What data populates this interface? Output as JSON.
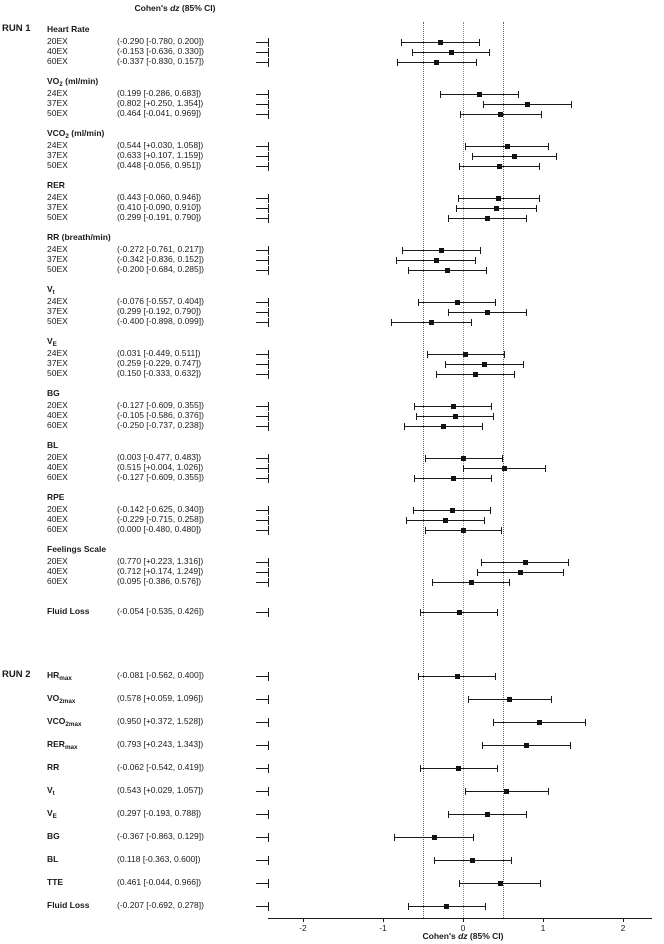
{
  "figure": {
    "title_parts": [
      {
        "t": "Cohen's "
      },
      {
        "t": "dz",
        "i": true
      },
      {
        "t": " (85% CI)"
      }
    ]
  },
  "chart_data": {
    "type": "forest",
    "effect_measure": "Cohen's dz",
    "ci_level": "85%",
    "title": "Cohen's dz (85% CI)",
    "marker_color": "#111111",
    "x_axis": {
      "label_parts": [
        {
          "t": "Cohen's "
        },
        {
          "t": "dz",
          "i": true
        },
        {
          "t": " (85% CI)"
        }
      ],
      "xlim": [
        -2.44,
        2.36
      ],
      "ticks": [
        {
          "value": -2,
          "label": "-2"
        },
        {
          "value": -1,
          "label": "-1"
        },
        {
          "value": 0,
          "label": "0"
        },
        {
          "value": 1,
          "label": "1"
        },
        {
          "value": 2,
          "label": "2"
        }
      ]
    },
    "ref_lines": [
      {
        "value": -0.5,
        "color": "#d93025",
        "style": "dotted"
      },
      {
        "value": 0,
        "color": "#8a8a8a",
        "style": "dotted"
      },
      {
        "value": 0.5,
        "color": "#d93025",
        "style": "dotted"
      }
    ],
    "sections": [
      {
        "run": "RUN 1",
        "groups": [
          {
            "label_parts": [
              {
                "t": "Heart Rate"
              }
            ],
            "rows": [
              {
                "label": "20EX",
                "ci_text": "(-0.290 [-0.780, 0.200])",
                "est": -0.29,
                "lo": -0.78,
                "hi": 0.2
              },
              {
                "label": "40EX",
                "ci_text": "(-0.153 [-0.636, 0.330])",
                "est": -0.153,
                "lo": -0.636,
                "hi": 0.33
              },
              {
                "label": "60EX",
                "ci_text": "(-0.337 [-0.830, 0.157])",
                "est": -0.337,
                "lo": -0.83,
                "hi": 0.157
              }
            ]
          },
          {
            "label_parts": [
              {
                "t": "VO"
              },
              {
                "t": "2",
                "sub": true
              },
              {
                "t": " (ml/min)"
              }
            ],
            "rows": [
              {
                "label": "24EX",
                "ci_text": "(0.199 [-0.286, 0.683])",
                "est": 0.199,
                "lo": -0.286,
                "hi": 0.683
              },
              {
                "label": "37EX",
                "ci_text": "(0.802 [+0.250, 1.354])",
                "est": 0.802,
                "lo": 0.25,
                "hi": 1.354
              },
              {
                "label": "50EX",
                "ci_text": "(0.464 [-0.041, 0.969])",
                "est": 0.464,
                "lo": -0.041,
                "hi": 0.969
              }
            ]
          },
          {
            "label_parts": [
              {
                "t": "VCO"
              },
              {
                "t": "2",
                "sub": true
              },
              {
                "t": " (ml/min)"
              }
            ],
            "rows": [
              {
                "label": "24EX",
                "ci_text": "(0.544 [+0.030, 1.058])",
                "est": 0.544,
                "lo": 0.03,
                "hi": 1.058
              },
              {
                "label": "37EX",
                "ci_text": "(0.633 [+0.107, 1.159])",
                "est": 0.633,
                "lo": 0.107,
                "hi": 1.159
              },
              {
                "label": "50EX",
                "ci_text": "(0.448 [-0.056, 0.951])",
                "est": 0.448,
                "lo": -0.056,
                "hi": 0.951
              }
            ]
          },
          {
            "label_parts": [
              {
                "t": "RER"
              }
            ],
            "rows": [
              {
                "label": "24EX",
                "ci_text": "(0.443 [-0.060, 0.946])",
                "est": 0.443,
                "lo": -0.06,
                "hi": 0.946
              },
              {
                "label": "37EX",
                "ci_text": "(0.410 [-0.090, 0.910])",
                "est": 0.41,
                "lo": -0.09,
                "hi": 0.91
              },
              {
                "label": "50EX",
                "ci_text": "(0.299 [-0.191, 0.790])",
                "est": 0.299,
                "lo": -0.191,
                "hi": 0.79
              }
            ]
          },
          {
            "label_parts": [
              {
                "t": "RR (breath/min)"
              }
            ],
            "rows": [
              {
                "label": "24EX",
                "ci_text": "(-0.272 [-0.761, 0.217])",
                "est": -0.272,
                "lo": -0.761,
                "hi": 0.217
              },
              {
                "label": "37EX",
                "ci_text": "(-0.342 [-0.836, 0.152])",
                "est": -0.342,
                "lo": -0.836,
                "hi": 0.152
              },
              {
                "label": "50EX",
                "ci_text": "(-0.200 [-0.684, 0.285])",
                "est": -0.2,
                "lo": -0.684,
                "hi": 0.285
              }
            ]
          },
          {
            "label_parts": [
              {
                "t": "V"
              },
              {
                "t": "t",
                "sub": true
              }
            ],
            "rows": [
              {
                "label": "24EX",
                "ci_text": "(-0.076 [-0.557, 0.404])",
                "est": -0.076,
                "lo": -0.557,
                "hi": 0.404
              },
              {
                "label": "37EX",
                "ci_text": "(0.299 [-0.192, 0.790])",
                "est": 0.299,
                "lo": -0.192,
                "hi": 0.79
              },
              {
                "label": "50EX",
                "ci_text": "(-0.400 [-0.898, 0.099])",
                "est": -0.4,
                "lo": -0.898,
                "hi": 0.099
              }
            ]
          },
          {
            "label_parts": [
              {
                "t": "V"
              },
              {
                "t": "E",
                "sub": true
              }
            ],
            "rows": [
              {
                "label": "24EX",
                "ci_text": "(0.031 [-0.449, 0.511])",
                "est": 0.031,
                "lo": -0.449,
                "hi": 0.511
              },
              {
                "label": "37EX",
                "ci_text": "(0.259 [-0.229, 0.747])",
                "est": 0.259,
                "lo": -0.229,
                "hi": 0.747
              },
              {
                "label": "50EX",
                "ci_text": "(0.150 [-0.333, 0.632])",
                "est": 0.15,
                "lo": -0.333,
                "hi": 0.632
              }
            ]
          },
          {
            "label_parts": [
              {
                "t": "BG"
              }
            ],
            "rows": [
              {
                "label": "20EX",
                "ci_text": "(-0.127 [-0.609, 0.355])",
                "est": -0.127,
                "lo": -0.609,
                "hi": 0.355
              },
              {
                "label": "40EX",
                "ci_text": "(-0.105 [-0.586, 0.376])",
                "est": -0.105,
                "lo": -0.586,
                "hi": 0.376
              },
              {
                "label": "60EX",
                "ci_text": "(-0.250 [-0.737, 0.238])",
                "est": -0.25,
                "lo": -0.737,
                "hi": 0.238
              }
            ]
          },
          {
            "label_parts": [
              {
                "t": "BL"
              }
            ],
            "rows": [
              {
                "label": "20EX",
                "ci_text": "(0.003 [-0.477, 0.483])",
                "est": 0.003,
                "lo": -0.477,
                "hi": 0.483
              },
              {
                "label": "40EX",
                "ci_text": "(0.515 [+0.004, 1.026])",
                "est": 0.515,
                "lo": 0.004,
                "hi": 1.026
              },
              {
                "label": "60EX",
                "ci_text": "(-0.127 [-0.609, 0.355])",
                "est": -0.127,
                "lo": -0.609,
                "hi": 0.355
              }
            ]
          },
          {
            "label_parts": [
              {
                "t": "RPE"
              }
            ],
            "rows": [
              {
                "label": "20EX",
                "ci_text": "(-0.142 [-0.625, 0.340])",
                "est": -0.142,
                "lo": -0.625,
                "hi": 0.34
              },
              {
                "label": "40EX",
                "ci_text": "(-0.229 [-0.715, 0.258])",
                "est": -0.229,
                "lo": -0.715,
                "hi": 0.258
              },
              {
                "label": "60EX",
                "ci_text": "(0.000 [-0.480, 0.480])",
                "est": 0.0,
                "lo": -0.48,
                "hi": 0.48
              }
            ]
          },
          {
            "label_parts": [
              {
                "t": "Feelings Scale"
              }
            ],
            "rows": [
              {
                "label": "20EX",
                "ci_text": "(0.770 [+0.223, 1.316])",
                "est": 0.77,
                "lo": 0.223,
                "hi": 1.316
              },
              {
                "label": "40EX",
                "ci_text": "(0.712 [+0.174, 1.249])",
                "est": 0.712,
                "lo": 0.174,
                "hi": 1.249
              },
              {
                "label": "60EX",
                "ci_text": "(0.095 [-0.386, 0.576])",
                "est": 0.095,
                "lo": -0.386,
                "hi": 0.576
              }
            ]
          },
          {
            "label_parts": [
              {
                "t": "Fluid Loss"
              }
            ],
            "rows": [
              {
                "ci_text": "(-0.054 [-0.535, 0.426])",
                "est": -0.054,
                "lo": -0.535,
                "hi": 0.426
              }
            ]
          }
        ]
      },
      {
        "run": "RUN 2",
        "groups": [
          {
            "label_parts": [
              {
                "t": "HR"
              },
              {
                "t": "max",
                "sub": true
              }
            ],
            "rows": [
              {
                "ci_text": "(-0.081 [-0.562, 0.400])",
                "est": -0.081,
                "lo": -0.562,
                "hi": 0.4
              }
            ]
          },
          {
            "label_parts": [
              {
                "t": "VO"
              },
              {
                "t": "2max",
                "sub": true
              }
            ],
            "rows": [
              {
                "ci_text": "(0.578 [+0.059, 1.096])",
                "est": 0.578,
                "lo": 0.059,
                "hi": 1.096
              }
            ]
          },
          {
            "label_parts": [
              {
                "t": "VCO"
              },
              {
                "t": "2max",
                "sub": true
              }
            ],
            "rows": [
              {
                "ci_text": "(0.950 [+0.372, 1.528])",
                "est": 0.95,
                "lo": 0.372,
                "hi": 1.528
              }
            ]
          },
          {
            "label_parts": [
              {
                "t": "RER"
              },
              {
                "t": "max",
                "sub": true
              }
            ],
            "rows": [
              {
                "ci_text": "(0.793 [+0.243, 1.343])",
                "est": 0.793,
                "lo": 0.243,
                "hi": 1.343
              }
            ]
          },
          {
            "label_parts": [
              {
                "t": "RR"
              }
            ],
            "rows": [
              {
                "ci_text": "(-0.062 [-0.542, 0.419])",
                "est": -0.062,
                "lo": -0.542,
                "hi": 0.419
              }
            ]
          },
          {
            "label_parts": [
              {
                "t": "V"
              },
              {
                "t": "t",
                "sub": true
              }
            ],
            "rows": [
              {
                "ci_text": "(0.543 [+0.029, 1.057])",
                "est": 0.543,
                "lo": 0.029,
                "hi": 1.057
              }
            ]
          },
          {
            "label_parts": [
              {
                "t": "V"
              },
              {
                "t": "E",
                "sub": true
              }
            ],
            "rows": [
              {
                "ci_text": "(0.297 [-0.193, 0.788])",
                "est": 0.297,
                "lo": -0.193,
                "hi": 0.788
              }
            ]
          },
          {
            "label_parts": [
              {
                "t": "BG"
              }
            ],
            "rows": [
              {
                "ci_text": "(-0.367 [-0.863, 0.129])",
                "est": -0.367,
                "lo": -0.863,
                "hi": 0.129
              }
            ]
          },
          {
            "label_parts": [
              {
                "t": "BL"
              }
            ],
            "rows": [
              {
                "ci_text": "(0.118 [-0.363, 0.600])",
                "est": 0.118,
                "lo": -0.363,
                "hi": 0.6
              }
            ]
          },
          {
            "label_parts": [
              {
                "t": "TTE"
              }
            ],
            "rows": [
              {
                "ci_text": "(0.461 [-0.044, 0.966])",
                "est": 0.461,
                "lo": -0.044,
                "hi": 0.966
              }
            ]
          },
          {
            "label_parts": [
              {
                "t": "Fluid Loss"
              }
            ],
            "rows": [
              {
                "ci_text": "(-0.207 [-0.692, 0.278])",
                "est": -0.207,
                "lo": -0.692,
                "hi": 0.278
              }
            ]
          }
        ]
      }
    ]
  }
}
